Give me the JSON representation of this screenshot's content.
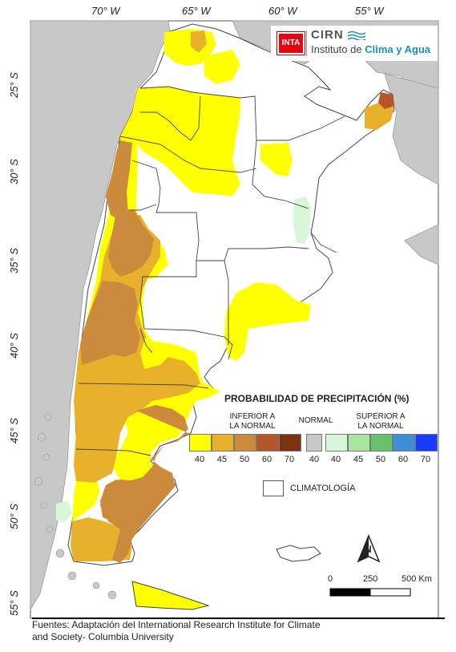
{
  "map": {
    "longitude_labels": [
      "70° W",
      "65° W",
      "60° W",
      "55° W"
    ],
    "latitude_labels": [
      "25° S",
      "30° S",
      "35° S",
      "40° S",
      "45° S",
      "50° S",
      "55° S"
    ]
  },
  "logo": {
    "inta": "INTA",
    "cirn": "CIRN",
    "institute_prefix": "Instituto de ",
    "institute_highlight": "Clima y Agua"
  },
  "legend": {
    "title": "PROBABILIDAD DE PRECIPITACIÓN (%)",
    "below_line1": "INFERIOR A",
    "below_line2": "LA NORMAL",
    "normal": "NORMAL",
    "above_line1": "SUPERIOR A",
    "above_line2": "LA NORMAL",
    "below_classes": [
      {
        "value": "40",
        "color": "#ffff00"
      },
      {
        "value": "45",
        "color": "#e8b12c"
      },
      {
        "value": "50",
        "color": "#cc8a3c"
      },
      {
        "value": "60",
        "color": "#b5552a"
      },
      {
        "value": "70",
        "color": "#7a3411"
      }
    ],
    "normal_class": {
      "value": "40",
      "color": "#c8c8c8"
    },
    "above_classes": [
      {
        "value": "40",
        "color": "#d7f7d7"
      },
      {
        "value": "45",
        "color": "#a8e6a0"
      },
      {
        "value": "50",
        "color": "#6cbf6c"
      },
      {
        "value": "60",
        "color": "#3d8fd6"
      },
      {
        "value": "70",
        "color": "#1a3cff"
      }
    ],
    "climatology": "CLIMATOLOGÍA"
  },
  "scalebar": {
    "labels": [
      "0",
      "250",
      "500 Km"
    ]
  },
  "north_arrow": "N",
  "footer": {
    "line1": "Fuentes: Adaptación del International Research Institute for Climate",
    "line2": "and Society- Columbia University"
  },
  "colors": {
    "sea": "#ffffff",
    "neighbors": "#c8c8c8",
    "land": "#ffffff",
    "border": "#333333"
  }
}
